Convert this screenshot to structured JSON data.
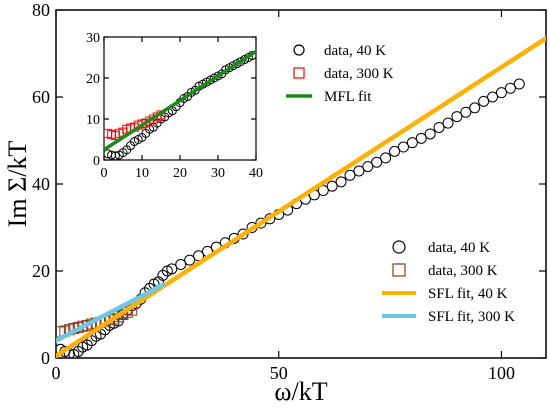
{
  "chart_data": [
    {
      "panel": "main",
      "type": "scatter",
      "xlabel": "ω/kT",
      "ylabel": "Im Σ/kT",
      "xlim": [
        0,
        110
      ],
      "ylim": [
        0,
        80
      ],
      "xticks": [
        0,
        50,
        100
      ],
      "yticks": [
        0,
        20,
        40,
        60,
        80
      ],
      "legend_position": "bottom-right",
      "series": [
        {
          "name": "data, 40 K",
          "kind": "markers",
          "marker": "circle",
          "color": "#000000",
          "points": [
            [
              1,
              2
            ],
            [
              2,
              1.5
            ],
            [
              3,
              1.0
            ],
            [
              4,
              0.8
            ],
            [
              5,
              1.5
            ],
            [
              6,
              2.5
            ],
            [
              7,
              3.0
            ],
            [
              8,
              4.0
            ],
            [
              9,
              5.0
            ],
            [
              10,
              5.5
            ],
            [
              11,
              6.5
            ],
            [
              12,
              7.5
            ],
            [
              13,
              8.0
            ],
            [
              14,
              8.5
            ],
            [
              15,
              10.0
            ],
            [
              16,
              11.0
            ],
            [
              17,
              12.0
            ],
            [
              18,
              12.5
            ],
            [
              19,
              13.5
            ],
            [
              20,
              15.0
            ],
            [
              21,
              16.0
            ],
            [
              22,
              17.0
            ],
            [
              23,
              17.5
            ],
            [
              24,
              19.0
            ],
            [
              25,
              20.0
            ],
            [
              26,
              20.5
            ],
            [
              28,
              21.5
            ],
            [
              30,
              22.5
            ],
            [
              32,
              23.5
            ],
            [
              34,
              24.5
            ],
            [
              36,
              25.5
            ],
            [
              38,
              26.5
            ],
            [
              40,
              27.5
            ],
            [
              42,
              28.5
            ],
            [
              44,
              30.0
            ],
            [
              46,
              31.0
            ],
            [
              48,
              32.0
            ],
            [
              50,
              33.0
            ],
            [
              52,
              34.0
            ],
            [
              54,
              35.5
            ],
            [
              56,
              36.5
            ],
            [
              58,
              37.5
            ],
            [
              60,
              38.5
            ],
            [
              62,
              39.5
            ],
            [
              64,
              40.5
            ],
            [
              66,
              42.0
            ],
            [
              68,
              43.0
            ],
            [
              70,
              44.0
            ],
            [
              72,
              45.0
            ],
            [
              74,
              46.0
            ],
            [
              76,
              47.5
            ],
            [
              78,
              48.5
            ],
            [
              80,
              49.5
            ],
            [
              82,
              50.5
            ],
            [
              84,
              51.5
            ],
            [
              86,
              53.0
            ],
            [
              88,
              54.0
            ],
            [
              90,
              55.5
            ],
            [
              92,
              56.5
            ],
            [
              94,
              57.5
            ],
            [
              96,
              59.0
            ],
            [
              98,
              60.0
            ],
            [
              100,
              61.0
            ],
            [
              102,
              62.0
            ],
            [
              104,
              63.0
            ]
          ]
        },
        {
          "name": "data, 300 K",
          "kind": "markers",
          "marker": "square",
          "color": "#8b3a1a",
          "points": [
            [
              1,
              6
            ],
            [
              2,
              6.2
            ],
            [
              3,
              6.5
            ],
            [
              4,
              6.8
            ],
            [
              5,
              7.0
            ],
            [
              6,
              7.3
            ],
            [
              7,
              7.5
            ],
            [
              8,
              7.8
            ],
            [
              9,
              8.0
            ],
            [
              10,
              8.2
            ],
            [
              11,
              8.5
            ],
            [
              12,
              8.8
            ],
            [
              13,
              9.0
            ],
            [
              14,
              9.5
            ],
            [
              15,
              10.0
            ],
            [
              16,
              10.5
            ],
            [
              17,
              11.0
            ]
          ]
        },
        {
          "name": "SFL fit, 40 K",
          "kind": "line",
          "color": "#ffb000",
          "points": [
            [
              0,
              0.5
            ],
            [
              110,
              73.5
            ]
          ]
        },
        {
          "name": "SFL fit, 300 K",
          "kind": "line",
          "color": "#6ec6e6",
          "points": [
            [
              0,
              4.0
            ],
            [
              24,
              16.8
            ]
          ]
        }
      ]
    },
    {
      "panel": "inset",
      "type": "scatter",
      "xlim": [
        0,
        40
      ],
      "ylim": [
        0,
        30
      ],
      "xticks": [
        0,
        10,
        20,
        30,
        40
      ],
      "yticks": [
        0,
        10,
        20,
        30
      ],
      "legend_position": "top-right",
      "series": [
        {
          "name": "data, 40 K",
          "kind": "markers",
          "marker": "circle",
          "color": "#000000",
          "points": [
            [
              1,
              1.5
            ],
            [
              2,
              1.2
            ],
            [
              3,
              1.0
            ],
            [
              4,
              1.2
            ],
            [
              5,
              1.8
            ],
            [
              6,
              2.5
            ],
            [
              7,
              3.5
            ],
            [
              8,
              4.5
            ],
            [
              9,
              5.0
            ],
            [
              10,
              5.5
            ],
            [
              11,
              6.5
            ],
            [
              12,
              7.5
            ],
            [
              13,
              8.0
            ],
            [
              14,
              9.0
            ],
            [
              15,
              10.0
            ],
            [
              16,
              10.5
            ],
            [
              17,
              11.5
            ],
            [
              18,
              12.0
            ],
            [
              19,
              13.0
            ],
            [
              20,
              14.0
            ],
            [
              21,
              15.0
            ],
            [
              22,
              15.5
            ],
            [
              23,
              16.5
            ],
            [
              24,
              17.0
            ],
            [
              25,
              18.0
            ],
            [
              26,
              18.5
            ],
            [
              27,
              19.0
            ],
            [
              28,
              19.5
            ],
            [
              29,
              20.0
            ],
            [
              30,
              20.5
            ],
            [
              31,
              21.0
            ],
            [
              32,
              22.0
            ],
            [
              33,
              22.5
            ],
            [
              34,
              23.0
            ],
            [
              35,
              23.5
            ],
            [
              36,
              24.0
            ],
            [
              37,
              24.5
            ],
            [
              38,
              25.0
            ],
            [
              39,
              25.5
            ]
          ]
        },
        {
          "name": "data, 300 K",
          "kind": "markers",
          "marker": "square",
          "color": "#ff0000",
          "points": [
            [
              1,
              6.5
            ],
            [
              2,
              6.2
            ],
            [
              3,
              6.0
            ],
            [
              4,
              6.5
            ],
            [
              5,
              6.8
            ],
            [
              6,
              7.5
            ],
            [
              7,
              7.8
            ],
            [
              8,
              8.0
            ],
            [
              9,
              8.5
            ],
            [
              10,
              8.8
            ],
            [
              11,
              9.0
            ],
            [
              12,
              9.5
            ],
            [
              13,
              10.0
            ],
            [
              14,
              10.5
            ],
            [
              15,
              11.0
            ]
          ]
        },
        {
          "name": "MFL fit",
          "kind": "line",
          "color": "#1a8a1a",
          "points": [
            [
              0,
              2.5
            ],
            [
              40,
              26.5
            ]
          ]
        }
      ]
    }
  ]
}
